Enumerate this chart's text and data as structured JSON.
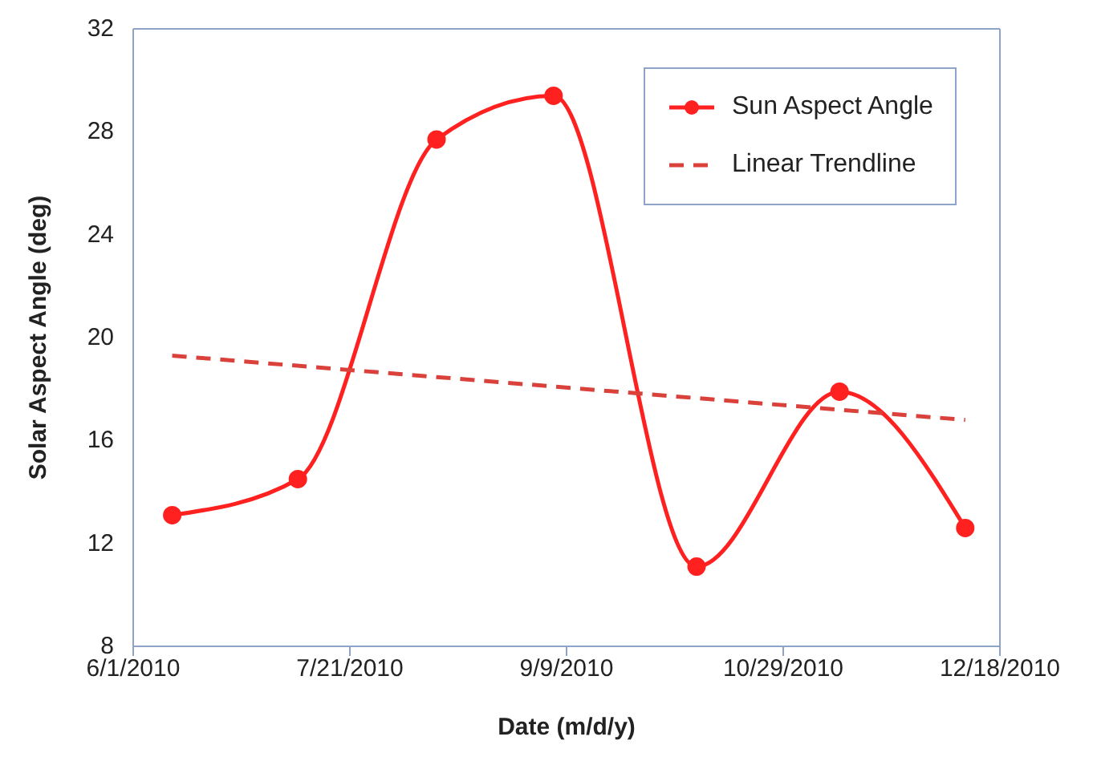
{
  "chart_data": {
    "type": "line",
    "xlabel": "Date (m/d/y)",
    "ylabel": "Solar Aspect Angle (deg)",
    "xlim": [
      "2010-06-01",
      "2010-12-18"
    ],
    "xticks": [
      {
        "value": "2010-06-01",
        "label": "6/1/2010"
      },
      {
        "value": "2010-07-21",
        "label": "7/21/2010"
      },
      {
        "value": "2010-09-09",
        "label": "9/9/2010"
      },
      {
        "value": "2010-10-29",
        "label": "10/29/2010"
      },
      {
        "value": "2010-12-18",
        "label": "12/18/2010"
      }
    ],
    "ylim": [
      8,
      32
    ],
    "yticks": [
      8,
      12,
      16,
      20,
      24,
      28,
      32
    ],
    "grid": false,
    "legend": "top right",
    "series": [
      {
        "name": "Sun Aspect Angle",
        "color": "#ff2020",
        "marker": "circle",
        "line_style": "solid",
        "x": [
          "2010-06-10",
          "2010-07-09",
          "2010-08-10",
          "2010-09-06",
          "2010-10-09",
          "2010-11-11",
          "2010-12-10"
        ],
        "values": [
          13.1,
          14.5,
          27.7,
          29.4,
          11.1,
          17.9,
          12.6
        ]
      },
      {
        "name": "Linear Trendline",
        "type": "line",
        "color": "#d9413a",
        "marker": "none",
        "line_style": "dashed",
        "x": [
          "2010-06-10",
          "2010-12-10"
        ],
        "values": [
          19.3,
          16.8
        ]
      }
    ]
  }
}
